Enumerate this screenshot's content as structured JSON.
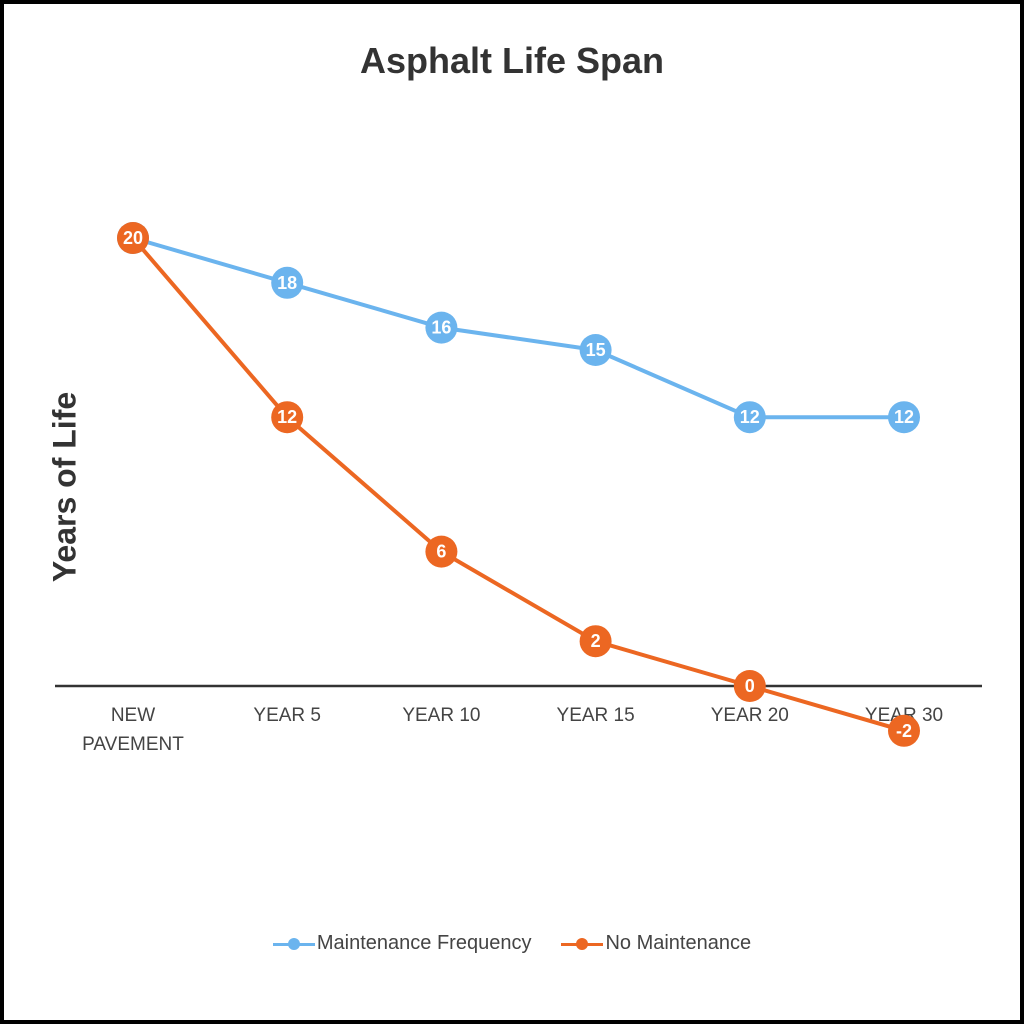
{
  "chart_data": {
    "type": "line",
    "title": "Asphalt Life Span",
    "ylabel": "Years of Life",
    "xlabel": "",
    "categories": [
      "NEW PAVEMENT",
      "YEAR 5",
      "YEAR 10",
      "YEAR 15",
      "YEAR 20",
      "YEAR 30"
    ],
    "series": [
      {
        "name": "Maintenance Frequency",
        "color": "#6BB4EE",
        "values": [
          20,
          18,
          16,
          15,
          12,
          12
        ]
      },
      {
        "name": "No Maintenance",
        "color": "#EC6722",
        "values": [
          20,
          12,
          6,
          2,
          0,
          -2
        ]
      }
    ],
    "ylim": [
      -4,
      24
    ],
    "grid": false,
    "data_labels": true,
    "legend_position": "bottom"
  }
}
